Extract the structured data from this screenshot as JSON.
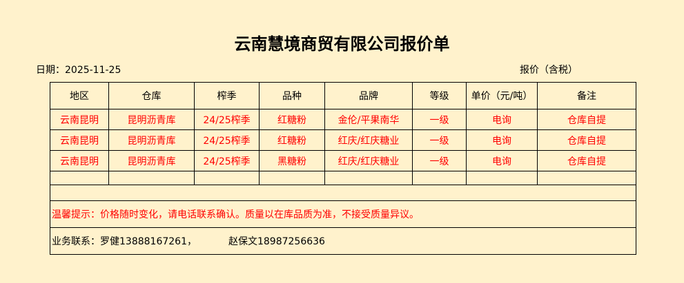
{
  "title": "云南慧境商贸有限公司报价单",
  "date_label": "日期：2025-11-25",
  "price_note": "报价（含税）",
  "table": {
    "headers": [
      "地区",
      "仓库",
      "榨季",
      "品种",
      "品牌",
      "等级",
      "单价（元/吨）",
      "备注"
    ],
    "rows": [
      [
        "云南昆明",
        "昆明沥青库",
        "24/25榨季",
        "红糖粉",
        "金伦/平果南华",
        "一级",
        "电询",
        "仓库自提"
      ],
      [
        "云南昆明",
        "昆明沥青库",
        "24/25榨季",
        "红糖粉",
        "红庆/红庆糖业",
        "一级",
        "电询",
        "仓库自提"
      ],
      [
        "云南昆明",
        "昆明沥青库",
        "24/25榨季",
        "黑糖粉",
        "红庆/红庆糖业",
        "一级",
        "电询",
        "仓库自提"
      ]
    ]
  },
  "tip": "温馨提示：价格随时变化，请电话联系确认。质量以在库品质为准，不接受质量异议。",
  "contact": {
    "label": "业务联系：罗健13888167261，",
    "second": "赵保文18987256636"
  },
  "colors": {
    "background": "#fff2cc",
    "highlight": "#ff0000"
  }
}
